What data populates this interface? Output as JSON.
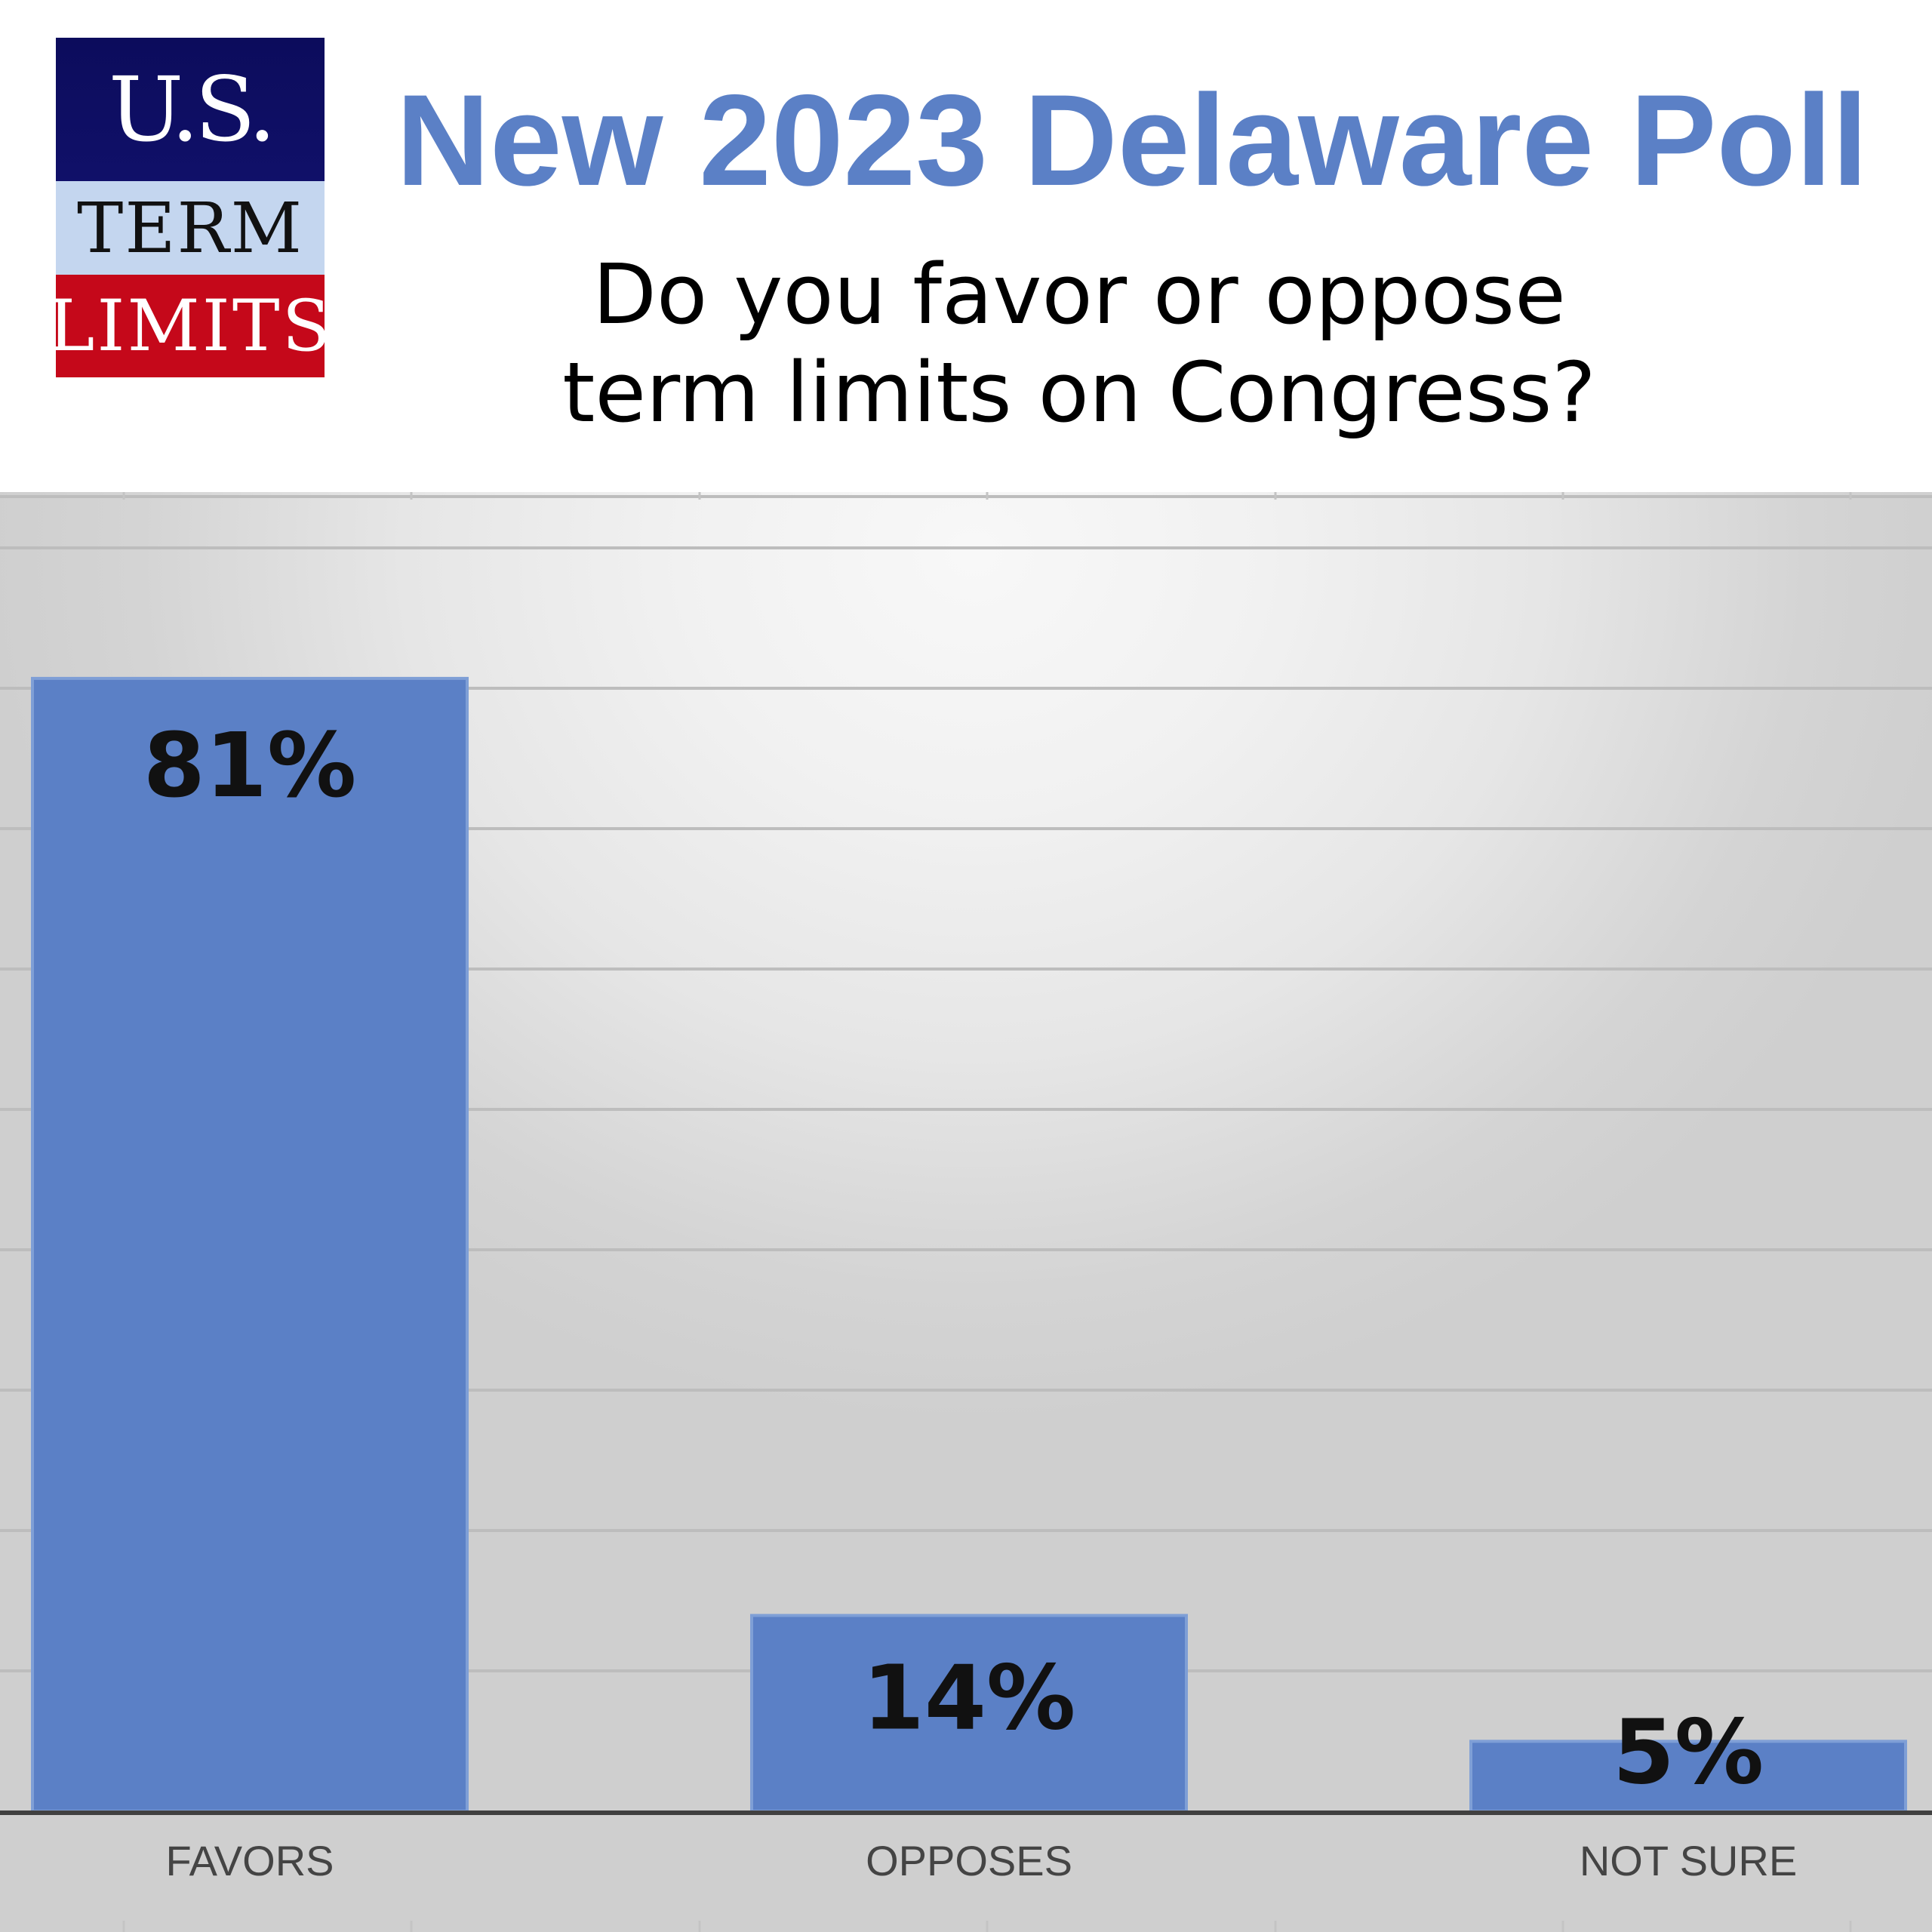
{
  "header": {
    "logo": {
      "line1": "U.S.",
      "line2": "TERM",
      "line3": "LIMITS",
      "colors": {
        "navy": "#101069",
        "light_blue": "#c4d6ef",
        "red": "#c5081a"
      }
    },
    "title": "New 2023 Delaware Poll",
    "subtitle": "Do you favor or oppose term limits on Congress?"
  },
  "colors": {
    "title": "#5b80c6",
    "bar": "#5b80c6",
    "bar_edge": "#7f9fd6"
  },
  "chart_data": {
    "type": "bar",
    "title": "Do you favor or oppose term limits on Congress?",
    "categories": [
      "FAVORS",
      "OPPOSES",
      "NOT SURE"
    ],
    "values": [
      81,
      14,
      5
    ],
    "value_labels": [
      "81%",
      "14%",
      "5%"
    ],
    "ylim": [
      0,
      94
    ],
    "grid": true,
    "legend": "none",
    "xlabel": "",
    "ylabel": ""
  }
}
